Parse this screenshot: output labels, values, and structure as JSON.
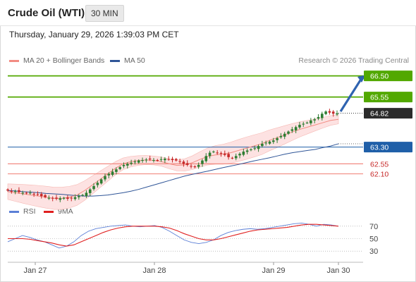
{
  "header": {
    "instrument": "Crude Oil (WTI)",
    "timeframe": "30 MIN"
  },
  "timestamp": "Thursday, January 29, 2026 1:39:03 PM CET",
  "legend": {
    "ma20": {
      "label": "MA 20 + Bollinger Bands",
      "color": "#f28b82"
    },
    "ma50": {
      "label": "MA 50",
      "color": "#2f5597"
    }
  },
  "copyright": "Research © 2026 Trading Central",
  "rsi_legend": {
    "rsi": {
      "label": "RSI",
      "color": "#5b7fd6"
    },
    "ma9": {
      "label": "9MA",
      "color": "#e02020"
    }
  },
  "colors": {
    "up_candle": "#2e7d32",
    "down_candle": "#c62828",
    "resistance": "#52a800",
    "support": "#1f5fa8",
    "support2": "#f28b82",
    "arrow": "#2f63b0",
    "bollinger_fill": "#fde2e2"
  },
  "chart_data": [
    {
      "type": "candlestick",
      "title": "",
      "x_ticks": [
        "Jan 27",
        "Jan 28",
        "Jan 29",
        "Jan 30"
      ],
      "ylim": [
        61.2,
        66.9
      ],
      "levels": [
        {
          "value": 66.5,
          "label": "66.50",
          "kind": "resistance"
        },
        {
          "value": 65.55,
          "label": "65.55",
          "kind": "resistance"
        },
        {
          "value": 64.82,
          "label": "64.82",
          "kind": "last"
        },
        {
          "value": 63.3,
          "label": "63.30",
          "kind": "pivot"
        },
        {
          "value": 62.55,
          "label": "62.55",
          "kind": "support"
        },
        {
          "value": 62.1,
          "label": "62.10",
          "kind": "support"
        }
      ],
      "close_series": [
        61.35,
        61.3,
        61.32,
        61.28,
        61.25,
        61.22,
        61.25,
        61.2,
        61.18,
        61.1,
        61.05,
        61.02,
        61.0,
        60.98,
        61.0,
        61.02,
        60.98,
        61.0,
        61.05,
        61.1,
        61.15,
        61.25,
        61.4,
        61.55,
        61.7,
        61.85,
        62.0,
        62.1,
        62.2,
        62.3,
        62.4,
        62.5,
        62.55,
        62.6,
        62.65,
        62.7,
        62.72,
        62.74,
        62.75,
        62.72,
        62.7,
        62.76,
        62.78,
        62.76,
        62.72,
        62.7,
        62.65,
        62.55,
        62.5,
        62.45,
        62.4,
        62.5,
        62.7,
        62.9,
        63.05,
        63.1,
        63.05,
        63.0,
        62.95,
        62.85,
        62.8,
        62.9,
        63.0,
        63.1,
        63.15,
        63.2,
        63.25,
        63.35,
        63.45,
        63.5,
        63.55,
        63.6,
        63.7,
        63.8,
        63.9,
        64.0,
        64.1,
        64.2,
        64.3,
        64.35,
        64.4,
        64.5,
        64.55,
        64.65,
        64.8,
        64.9,
        64.85,
        64.8,
        64.82
      ],
      "ma50_series": [
        61.35,
        61.33,
        61.3,
        61.28,
        61.25,
        61.22,
        61.2,
        61.18,
        61.15,
        61.12,
        61.1,
        61.1,
        61.12,
        61.15,
        61.2,
        61.25,
        61.32,
        61.4,
        61.5,
        61.6,
        61.7,
        61.8,
        61.9,
        62.0,
        62.08,
        62.15,
        62.22,
        62.3,
        62.38,
        62.45,
        62.52,
        62.6,
        62.68,
        62.75,
        62.82,
        62.9,
        62.98,
        63.05,
        63.1,
        63.15,
        63.2,
        63.28,
        63.35,
        63.45
      ],
      "ma20_series": [
        61.3,
        61.25,
        61.2,
        61.15,
        61.1,
        61.05,
        61.0,
        61.0,
        61.05,
        61.15,
        61.35,
        61.6,
        61.85,
        62.1,
        62.35,
        62.55,
        62.65,
        62.7,
        62.72,
        62.7,
        62.65,
        62.55,
        62.48,
        62.5,
        62.6,
        62.75,
        62.88,
        62.95,
        62.98,
        63.05,
        63.15,
        63.25,
        63.35,
        63.45,
        63.6,
        63.72,
        63.85,
        63.98,
        64.1,
        64.2,
        64.3,
        64.4,
        64.5,
        64.55
      ]
    },
    {
      "type": "line",
      "title": "",
      "y_ticks": [
        "70",
        "50",
        "30"
      ],
      "ylim": [
        20,
        80
      ],
      "series": [
        {
          "name": "RSI",
          "values": [
            45,
            50,
            55,
            52,
            48,
            45,
            40,
            35,
            38,
            45,
            55,
            62,
            66,
            68,
            70,
            71,
            72,
            70,
            69,
            70,
            71,
            68,
            62,
            55,
            48,
            44,
            42,
            44,
            48,
            55,
            60,
            63,
            65,
            66,
            65,
            66,
            68,
            70,
            72,
            74,
            75,
            73,
            70,
            73,
            72,
            70
          ]
        },
        {
          "name": "9MA",
          "values": [
            50,
            50,
            50,
            49,
            47,
            45,
            43,
            40,
            38,
            40,
            45,
            50,
            55,
            60,
            64,
            67,
            69,
            70,
            70,
            70,
            70,
            69,
            67,
            63,
            58,
            54,
            50,
            48,
            48,
            50,
            53,
            56,
            59,
            62,
            64,
            65,
            66,
            67,
            68,
            70,
            72,
            73,
            73,
            72,
            71,
            70
          ]
        }
      ]
    }
  ]
}
